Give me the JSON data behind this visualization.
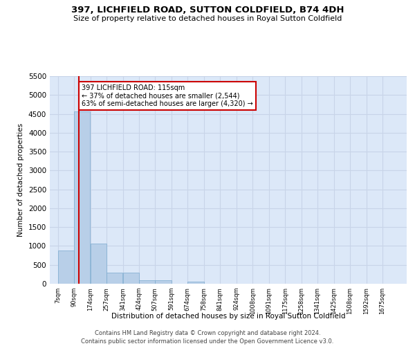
{
  "title": "397, LICHFIELD ROAD, SUTTON COLDFIELD, B74 4DH",
  "subtitle": "Size of property relative to detached houses in Royal Sutton Coldfield",
  "xlabel": "Distribution of detached houses by size in Royal Sutton Coldfield",
  "ylabel": "Number of detached properties",
  "footer_line1": "Contains HM Land Registry data © Crown copyright and database right 2024.",
  "footer_line2": "Contains public sector information licensed under the Open Government Licence v3.0.",
  "annotation_line1": "397 LICHFIELD ROAD: 115sqm",
  "annotation_line2": "← 37% of detached houses are smaller (2,544)",
  "annotation_line3": "63% of semi-detached houses are larger (4,320) →",
  "property_size": 115,
  "categories": [
    "7sqm",
    "90sqm",
    "174sqm",
    "257sqm",
    "341sqm",
    "424sqm",
    "507sqm",
    "591sqm",
    "674sqm",
    "758sqm",
    "841sqm",
    "924sqm",
    "1008sqm",
    "1091sqm",
    "1175sqm",
    "1258sqm",
    "1341sqm",
    "1425sqm",
    "1508sqm",
    "1592sqm",
    "1675sqm"
  ],
  "bin_edges": [
    7,
    90,
    174,
    257,
    341,
    424,
    507,
    591,
    674,
    758,
    841,
    924,
    1008,
    1091,
    1175,
    1258,
    1341,
    1425,
    1508,
    1592,
    1675
  ],
  "values": [
    880,
    4560,
    1060,
    290,
    290,
    90,
    90,
    0,
    60,
    0,
    0,
    0,
    0,
    0,
    0,
    0,
    0,
    0,
    0,
    0,
    0
  ],
  "bar_color": "#b8cfe8",
  "bar_edge_color": "#7aaace",
  "vline_color": "#cc0000",
  "grid_color": "#c8d4e8",
  "bg_color": "#dce8f8",
  "annotation_box_color": "#cc0000",
  "ylim": [
    0,
    5500
  ],
  "yticks": [
    0,
    500,
    1000,
    1500,
    2000,
    2500,
    3000,
    3500,
    4000,
    4500,
    5000,
    5500
  ]
}
